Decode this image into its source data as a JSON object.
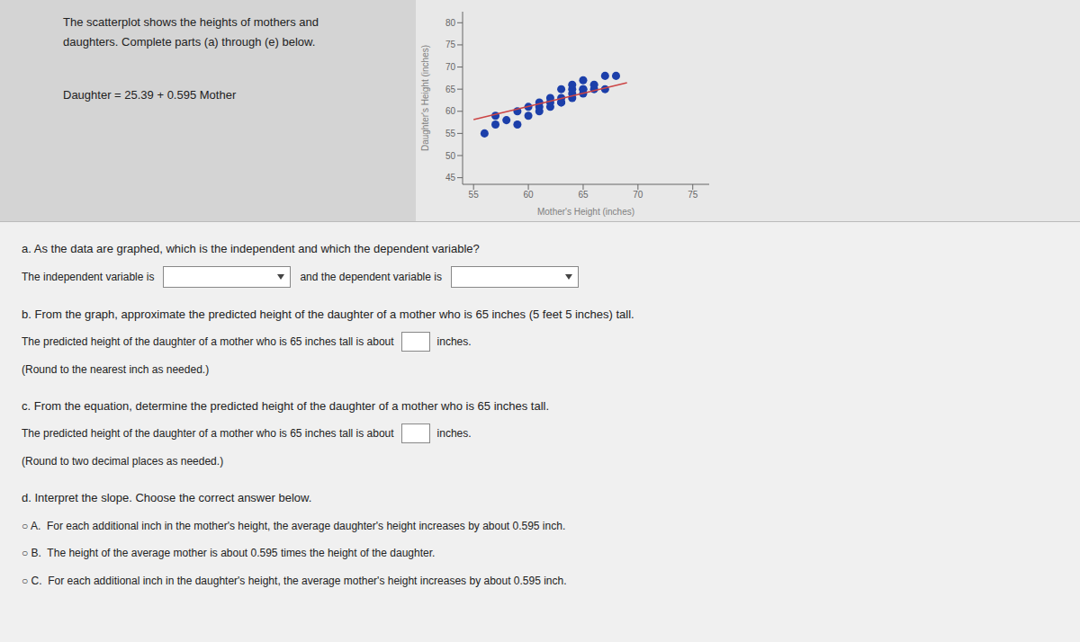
{
  "chart_data": {
    "type": "scatter",
    "xlabel": "Mother's Height (inches)",
    "ylabel": "Daughter's Height (inches)",
    "xlim": [
      54.0,
      76.5
    ],
    "ylim": [
      43.5,
      82.5
    ],
    "xticks": [
      55,
      60,
      65,
      70,
      75
    ],
    "yticks": [
      45,
      50,
      55,
      60,
      65,
      70,
      75,
      80
    ],
    "grid": false,
    "series": [
      {
        "type": "scatter",
        "color": "#1c3faa",
        "x": [
          56,
          57,
          57,
          58,
          59,
          59,
          60,
          60,
          61,
          61,
          61,
          62,
          62,
          62,
          63,
          63,
          63,
          63,
          64,
          64,
          64,
          64,
          65,
          65,
          65,
          65,
          66,
          66,
          67,
          67,
          68
        ],
        "values": [
          55,
          57,
          59,
          58,
          57,
          60,
          59,
          61,
          60,
          61,
          62,
          61,
          62,
          63,
          62,
          62,
          63,
          65,
          63,
          64,
          65,
          66,
          64,
          65,
          65,
          67,
          65,
          66,
          65,
          68,
          68
        ]
      },
      {
        "type": "line",
        "color": "#cc4444",
        "x": [
          55,
          69
        ],
        "values": [
          58.115,
          66.445
        ]
      }
    ],
    "annotations": [
      [
        "The scatterplot shows the heights of mothers and"
      ],
      [
        "daughters. Complete parts (a) through (e) below."
      ],
      [
        "Daughter = 25.39 + 0.595 Mother"
      ],
      [
        "a. As the data are graphed, which is the independent and which the dependent variable?"
      ],
      [
        "The independent variable is",
        "and the dependent variable is"
      ],
      [
        "b. From the graph, approximate the predicted height of the daughter of a mother who is 65 inches (5 feet 5 inches) tall."
      ],
      [
        "The predicted height of the daughter of a mother who is 65 inches tall is about",
        "inches."
      ],
      [
        "(Round to the nearest inch as needed.)"
      ],
      [
        "c. From the equation, determine the predicted height of the daughter of a mother who is 65 inches tall."
      ],
      [
        "The predicted height of the daughter of a mother who is 65 inches tall is about",
        "inches."
      ],
      [
        "(Round to two decimal places as needed.)"
      ],
      [
        "d. Interpret the slope. Choose the correct answer below."
      ],
      [
        "○ A.  For each additional inch in the mother's height, the average daughter's height increases by about 0.595 inch."
      ],
      [
        "○ B.  The height of the average mother is about 0.595 times the height of the daughter."
      ],
      [
        "○ C.  For each additional inch in the daughter's height, the average mother's height increases by about 0.595 inch."
      ]
    ]
  }
}
